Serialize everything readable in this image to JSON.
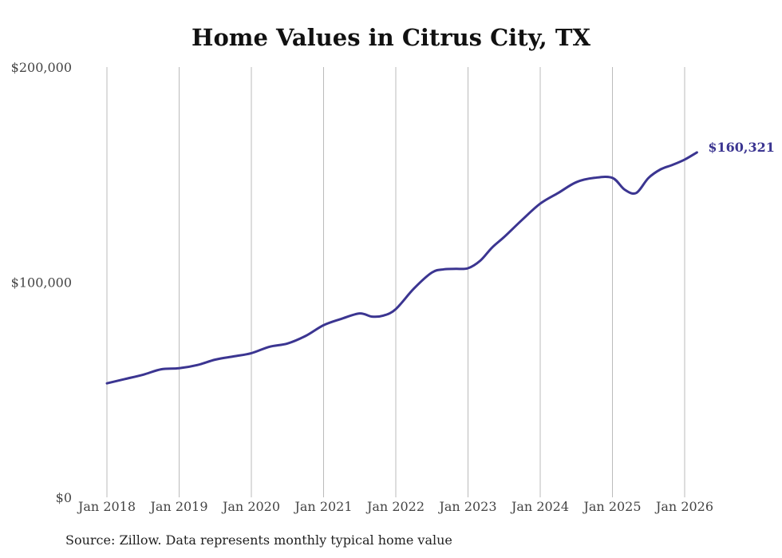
{
  "chart_data": {
    "type": "line",
    "title": "Home Values in Citrus City, TX",
    "xlabel": "",
    "ylabel": "",
    "ylim": [
      0,
      200000
    ],
    "y_ticks": [
      {
        "value": 0,
        "label": "$0"
      },
      {
        "value": 100000,
        "label": "$100,000"
      },
      {
        "value": 200000,
        "label": "$200,000"
      }
    ],
    "x_ticks": [
      {
        "value": 2018.0,
        "label": "Jan 2018"
      },
      {
        "value": 2019.0,
        "label": "Jan 2019"
      },
      {
        "value": 2020.0,
        "label": "Jan 2020"
      },
      {
        "value": 2021.0,
        "label": "Jan 2021"
      },
      {
        "value": 2022.0,
        "label": "Jan 2022"
      },
      {
        "value": 2023.0,
        "label": "Jan 2023"
      },
      {
        "value": 2024.0,
        "label": "Jan 2024"
      },
      {
        "value": 2025.0,
        "label": "Jan 2025"
      },
      {
        "value": 2026.0,
        "label": "Jan 2026"
      }
    ],
    "xlim": [
      2018.0,
      2026.17
    ],
    "grid": "vertical",
    "line_color": "#3b3591",
    "grid_color": "#bbbbbb",
    "end_label": "$160,321",
    "series": [
      {
        "x": [
          2018.0,
          2018.25,
          2018.5,
          2018.75,
          2019.0,
          2019.25,
          2019.5,
          2019.75,
          2020.0,
          2020.25,
          2020.5,
          2020.75,
          2021.0,
          2021.25,
          2021.5,
          2021.67,
          2021.83,
          2022.0,
          2022.25,
          2022.5,
          2022.67,
          2022.83,
          2023.0,
          2023.17,
          2023.33,
          2023.5,
          2023.75,
          2024.0,
          2024.25,
          2024.5,
          2024.75,
          2025.0,
          2025.17,
          2025.33,
          2025.5,
          2025.67,
          2025.83,
          2026.0,
          2026.17
        ],
        "values": [
          53000,
          55000,
          57000,
          59500,
          60000,
          61500,
          64000,
          65500,
          67000,
          70000,
          71500,
          75000,
          80000,
          83000,
          85500,
          84000,
          84500,
          87500,
          97000,
          104500,
          106000,
          106200,
          106500,
          110000,
          116000,
          121000,
          129000,
          136500,
          141500,
          146500,
          148500,
          148500,
          143000,
          141500,
          148500,
          152500,
          154500,
          157000,
          160321
        ]
      }
    ]
  },
  "source_note": "Source: Zillow. Data represents monthly typical home value"
}
